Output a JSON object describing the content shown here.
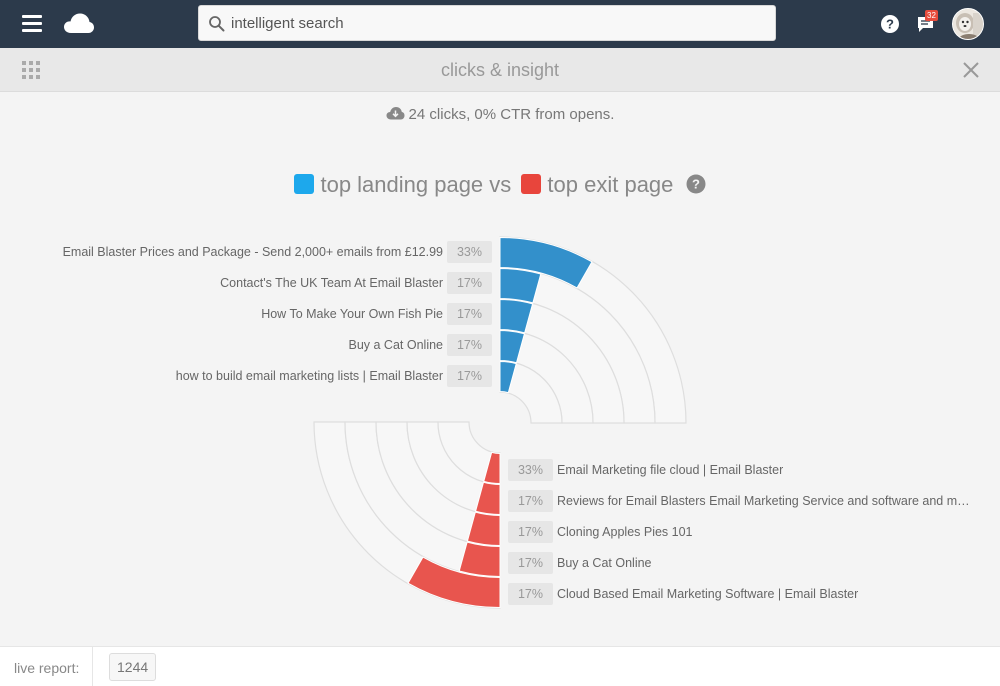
{
  "header": {
    "search_placeholder": "intelligent search",
    "message_count": "32"
  },
  "subheader": {
    "title": "clicks & insight"
  },
  "summary": {
    "text": "24 clicks, 0% CTR from opens."
  },
  "legend": {
    "landing_label": "top landing page vs",
    "exit_label": "top exit page"
  },
  "colors": {
    "landing": "#3390cb",
    "exit": "#e8554e",
    "landing_legend": "#1da8ec",
    "exit_legend": "#e8453c"
  },
  "chart_data": [
    {
      "type": "radial-bar",
      "title": "top landing page",
      "categories": [
        "Email Blaster Prices and Package - Send 2,000+ emails from £12.99",
        "Contact's The UK Team At Email Blaster",
        "How To Make Your Own Fish Pie",
        "Buy a Cat Online",
        "how to build email marketing lists | Email Blaster"
      ],
      "value_labels": [
        "33%",
        "17%",
        "17%",
        "17%",
        "17%"
      ],
      "values": [
        33,
        17,
        17,
        17,
        17
      ]
    },
    {
      "type": "radial-bar",
      "title": "top exit page",
      "categories": [
        "Email Marketing file cloud | Email Blaster",
        "Reviews for Email Blasters Email Marketing Service and software and much…",
        "Cloning Apples Pies 101",
        "Buy a Cat Online",
        "Cloud Based Email Marketing Software | Email Blaster"
      ],
      "value_labels": [
        "33%",
        "17%",
        "17%",
        "17%",
        "17%"
      ],
      "values": [
        33,
        17,
        17,
        17,
        17
      ]
    }
  ],
  "footer": {
    "label": "live report:",
    "value": "1244"
  }
}
